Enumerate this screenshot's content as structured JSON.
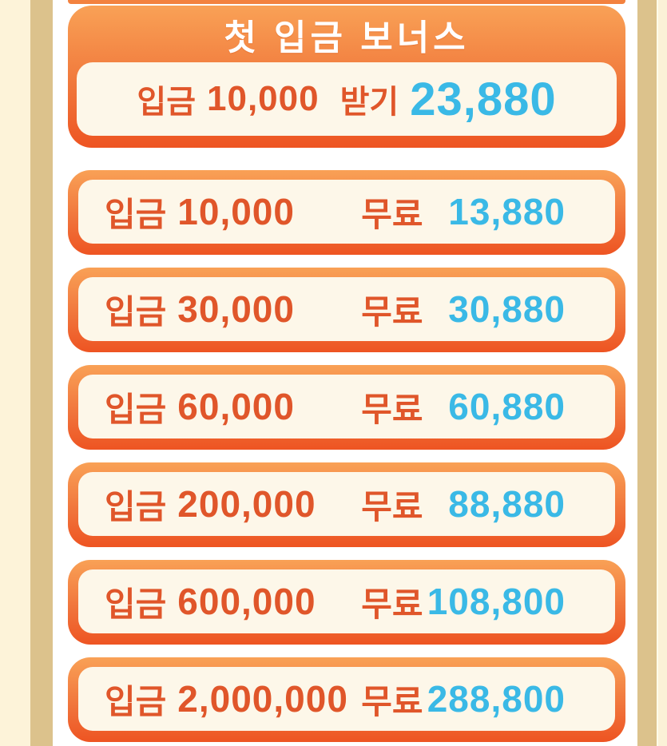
{
  "header": {
    "title": "첫 입금 보너스",
    "claim_row": {
      "deposit_label": "입금",
      "deposit_amount": "10,000",
      "action_label": "받기",
      "bonus_value": "23,880"
    }
  },
  "bonus_tiers": [
    {
      "deposit_label": "입금",
      "deposit_amount": "10,000",
      "free_label": "무료",
      "bonus_value": "13,880"
    },
    {
      "deposit_label": "입금",
      "deposit_amount": "30,000",
      "free_label": "무료",
      "bonus_value": "30,880"
    },
    {
      "deposit_label": "입금",
      "deposit_amount": "60,000",
      "free_label": "무료",
      "bonus_value": "60,880"
    },
    {
      "deposit_label": "입금",
      "deposit_amount": "200,000",
      "free_label": "무료",
      "bonus_value": "88,880"
    },
    {
      "deposit_label": "입금",
      "deposit_amount": "600,000",
      "free_label": "무료",
      "bonus_value": "108,800"
    },
    {
      "deposit_label": "입금",
      "deposit_amount": "2,000,000",
      "free_label": "무료",
      "bonus_value": "288,800"
    }
  ],
  "colors": {
    "gradient_top": "#f9a156",
    "gradient_bottom": "#ee5422",
    "strip_orange": "#f3823f",
    "card_cream": "#fdf7e9",
    "page_cream": "#fdf3d9",
    "stripe_tan": "#dcc28c",
    "text_orange": "#e0562a",
    "text_cyan": "#3ab9e6",
    "title_white": "#ffffff"
  }
}
